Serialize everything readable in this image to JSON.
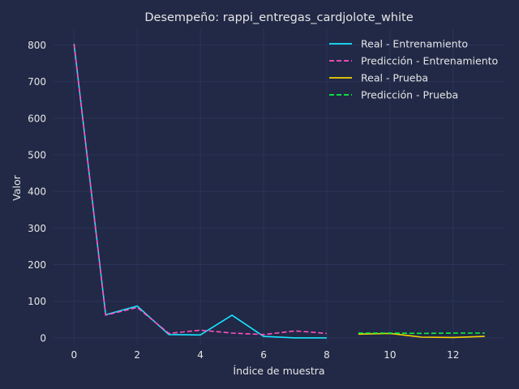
{
  "chart_data": {
    "type": "line",
    "title": "Desempeño: rappi_entregas_cardjolote_white",
    "xlabel": "Índice de muestra",
    "ylabel": "Valor",
    "xlim": [
      -0.65,
      13.65
    ],
    "ylim": [
      -18,
      843
    ],
    "xticks": [
      0,
      2,
      4,
      6,
      8,
      10,
      12
    ],
    "yticks": [
      0,
      100,
      200,
      300,
      400,
      500,
      600,
      700,
      800
    ],
    "grid": true,
    "legend_position": "top-right",
    "series": [
      {
        "name": "Real - Entrenamiento",
        "color": "#18e6ff",
        "dash": "solid",
        "x": [
          0,
          1,
          2,
          3,
          4,
          5,
          6,
          7,
          8
        ],
        "y": [
          803,
          63,
          87,
          9,
          8,
          62,
          4,
          0,
          0
        ]
      },
      {
        "name": "Predicción - Entrenamiento",
        "color": "#ff52c0",
        "dash": "dashed",
        "x": [
          0,
          1,
          2,
          3,
          4,
          5,
          6,
          7,
          8
        ],
        "y": [
          802,
          62,
          83,
          12,
          21,
          13,
          9,
          19,
          12
        ]
      },
      {
        "name": "Real - Prueba",
        "color": "#f5d300",
        "dash": "solid",
        "x": [
          9,
          10,
          11,
          12,
          13
        ],
        "y": [
          10,
          12,
          2,
          1,
          4
        ]
      },
      {
        "name": "Predicción - Prueba",
        "color": "#08f742",
        "dash": "dashed",
        "x": [
          9,
          10,
          11,
          12,
          13
        ],
        "y": [
          13,
          13,
          12,
          13,
          13
        ]
      }
    ]
  }
}
